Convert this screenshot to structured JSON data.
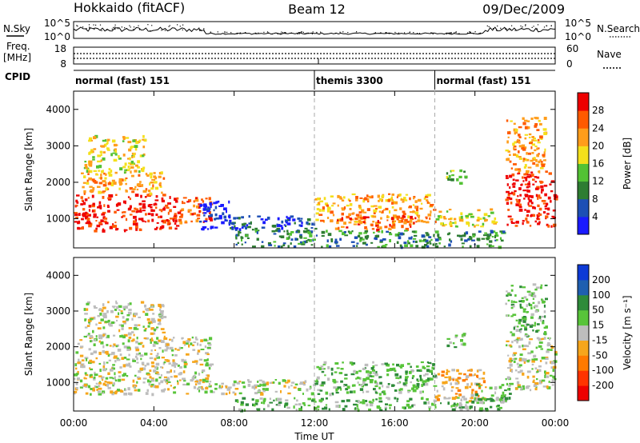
{
  "header": {
    "radar": "Hokkaido (fitACF)",
    "beam": "Beam 12",
    "date": "09/Dec/2009"
  },
  "strip_labels": {
    "nsky": "N.Sky",
    "nsearch": "N.Search",
    "freq": "Freq.",
    "freq_unit": "[MHz]",
    "nave": "Nave",
    "cpid": "CPID",
    "nsky_ticks": [
      "10^5",
      "10^0"
    ],
    "nsearch_ticks": [
      "10^5",
      "10^0"
    ],
    "freq_ticks": [
      "18",
      "8"
    ],
    "nave_ticks": [
      "60",
      "0"
    ]
  },
  "cpid_segments": [
    {
      "label": "normal (fast) 151",
      "start_h": 0,
      "end_h": 12
    },
    {
      "label": "themis 3300",
      "start_h": 12,
      "end_h": 18
    },
    {
      "label": "normal (fast) 151",
      "start_h": 18,
      "end_h": 24
    }
  ],
  "colors": {
    "power_scale": [
      "#1a1aff",
      "#1d4fb5",
      "#2e7d32",
      "#53c234",
      "#f4e01c",
      "#ff9d1b",
      "#ff5a00",
      "#ee0000"
    ],
    "velocity_scale": [
      "#0d3ad6",
      "#1f5fb0",
      "#2e8b3a",
      "#58c43a",
      "#bdbdbd",
      "#f6a61c",
      "#ff7a00",
      "#ff3300",
      "#ee0000"
    ]
  },
  "chart_data": [
    {
      "type": "heatmap",
      "title": "Power",
      "xlabel": "Time UT",
      "ylabel": "Slant Range [km]",
      "xlim": [
        0,
        24
      ],
      "ylim": [
        200,
        4500
      ],
      "x_ticks": [
        "00:00",
        "04:00",
        "08:00",
        "12:00",
        "16:00",
        "20:00",
        "00:00"
      ],
      "y_ticks": [
        "1000",
        "2000",
        "3000",
        "4000"
      ],
      "colorbar_label": "Power [dB]",
      "colorbar_ticks": [
        "4",
        "8",
        "12",
        "16",
        "20",
        "24",
        "28"
      ],
      "regions": [
        {
          "t0": 0.0,
          "t1": 5.2,
          "r0": 700,
          "r1": 1700,
          "level": 7
        },
        {
          "t0": 0.3,
          "t1": 4.5,
          "r0": 1700,
          "r1": 2300,
          "level": 5
        },
        {
          "t0": 0.5,
          "t1": 3.5,
          "r0": 2300,
          "r1": 3300,
          "level": 4
        },
        {
          "t0": 5.0,
          "t1": 6.8,
          "r0": 900,
          "r1": 1600,
          "level": 6
        },
        {
          "t0": 6.2,
          "t1": 7.8,
          "r0": 700,
          "r1": 1500,
          "level": 0
        },
        {
          "t0": 7.5,
          "t1": 12.0,
          "r0": 700,
          "r1": 1100,
          "level": 1
        },
        {
          "t0": 12.0,
          "t1": 18.0,
          "r0": 900,
          "r1": 1700,
          "level": 5
        },
        {
          "t0": 13.0,
          "t1": 17.0,
          "r0": 700,
          "r1": 1100,
          "level": 6
        },
        {
          "t0": 8.0,
          "t1": 21.5,
          "r0": 250,
          "r1": 700,
          "level": 2
        },
        {
          "t0": 18.0,
          "t1": 21.0,
          "r0": 800,
          "r1": 1300,
          "level": 4
        },
        {
          "t0": 18.5,
          "t1": 19.5,
          "r0": 2000,
          "r1": 2400,
          "level": 3
        },
        {
          "t0": 21.5,
          "t1": 24.0,
          "r0": 800,
          "r1": 2300,
          "level": 7
        },
        {
          "t0": 21.5,
          "t1": 23.5,
          "r0": 2300,
          "r1": 3800,
          "level": 5
        }
      ]
    },
    {
      "type": "heatmap",
      "title": "Velocity",
      "xlabel": "Time UT",
      "ylabel": "Slant Range [km]",
      "xlim": [
        0,
        24
      ],
      "ylim": [
        200,
        4500
      ],
      "x_ticks": [
        "00:00",
        "04:00",
        "08:00",
        "12:00",
        "16:00",
        "20:00",
        "00:00"
      ],
      "y_ticks": [
        "1000",
        "2000",
        "3000",
        "4000"
      ],
      "colorbar_label": "Velocity [m s⁻¹]",
      "colorbar_ticks": [
        "200",
        "100",
        "50",
        "15",
        "-15",
        "-50",
        "-100",
        "-200"
      ],
      "regions": [
        {
          "t0": 0.0,
          "t1": 6.8,
          "r0": 700,
          "r1": 2300,
          "level": 4
        },
        {
          "t0": 0.5,
          "t1": 4.5,
          "r0": 2300,
          "r1": 3300,
          "level": 4
        },
        {
          "t0": 6.0,
          "t1": 12.0,
          "r0": 700,
          "r1": 1100,
          "level": 4
        },
        {
          "t0": 12.0,
          "t1": 18.0,
          "r0": 700,
          "r1": 1600,
          "level": 3
        },
        {
          "t0": 18.0,
          "t1": 20.5,
          "r0": 500,
          "r1": 1400,
          "level": 5
        },
        {
          "t0": 20.0,
          "t1": 21.8,
          "r0": 500,
          "r1": 1000,
          "level": 3
        },
        {
          "t0": 8.0,
          "t1": 21.5,
          "r0": 250,
          "r1": 600,
          "level": 3
        },
        {
          "t0": 18.5,
          "t1": 19.5,
          "r0": 2000,
          "r1": 2400,
          "level": 3
        },
        {
          "t0": 21.5,
          "t1": 24.0,
          "r0": 800,
          "r1": 2300,
          "level": 4
        },
        {
          "t0": 21.5,
          "t1": 23.5,
          "r0": 2300,
          "r1": 3800,
          "level": 3
        }
      ]
    }
  ]
}
